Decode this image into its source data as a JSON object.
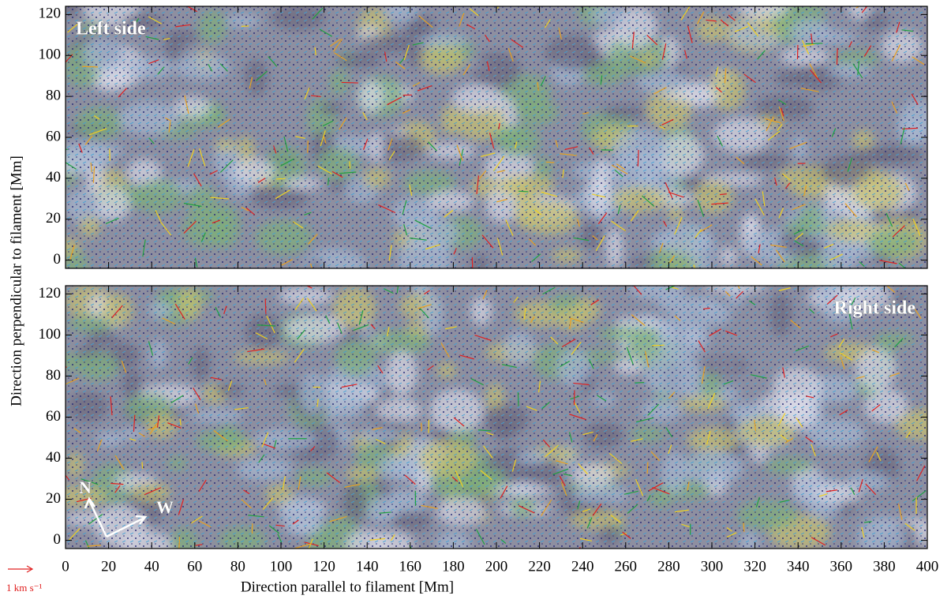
{
  "chart_data": [
    {
      "type": "quiver",
      "annotation": "Left side",
      "xlim": [
        0,
        400
      ],
      "ylim": [
        -4,
        124
      ],
      "xticks": [
        0,
        20,
        40,
        60,
        80,
        100,
        120,
        140,
        160,
        180,
        200,
        220,
        240,
        260,
        280,
        300,
        320,
        340,
        360,
        380,
        400
      ],
      "yticks": [
        0,
        20,
        40,
        60,
        80,
        100,
        120
      ]
    },
    {
      "type": "quiver",
      "annotation": "Right side",
      "xlim": [
        0,
        400
      ],
      "ylim": [
        -4,
        124
      ],
      "xticks": [
        0,
        20,
        40,
        60,
        80,
        100,
        120,
        140,
        160,
        180,
        200,
        220,
        240,
        260,
        280,
        300,
        320,
        340,
        360,
        380,
        400
      ],
      "yticks": [
        0,
        20,
        40,
        60,
        80,
        100,
        120
      ]
    }
  ],
  "figure": {
    "xlabel": "Direction parallel to filament   [Mm]",
    "ylabel": "Direction perpendicular to filament [Mm]",
    "scale_label": "1 km s⁻¹",
    "compass": [
      "N",
      "W"
    ]
  }
}
